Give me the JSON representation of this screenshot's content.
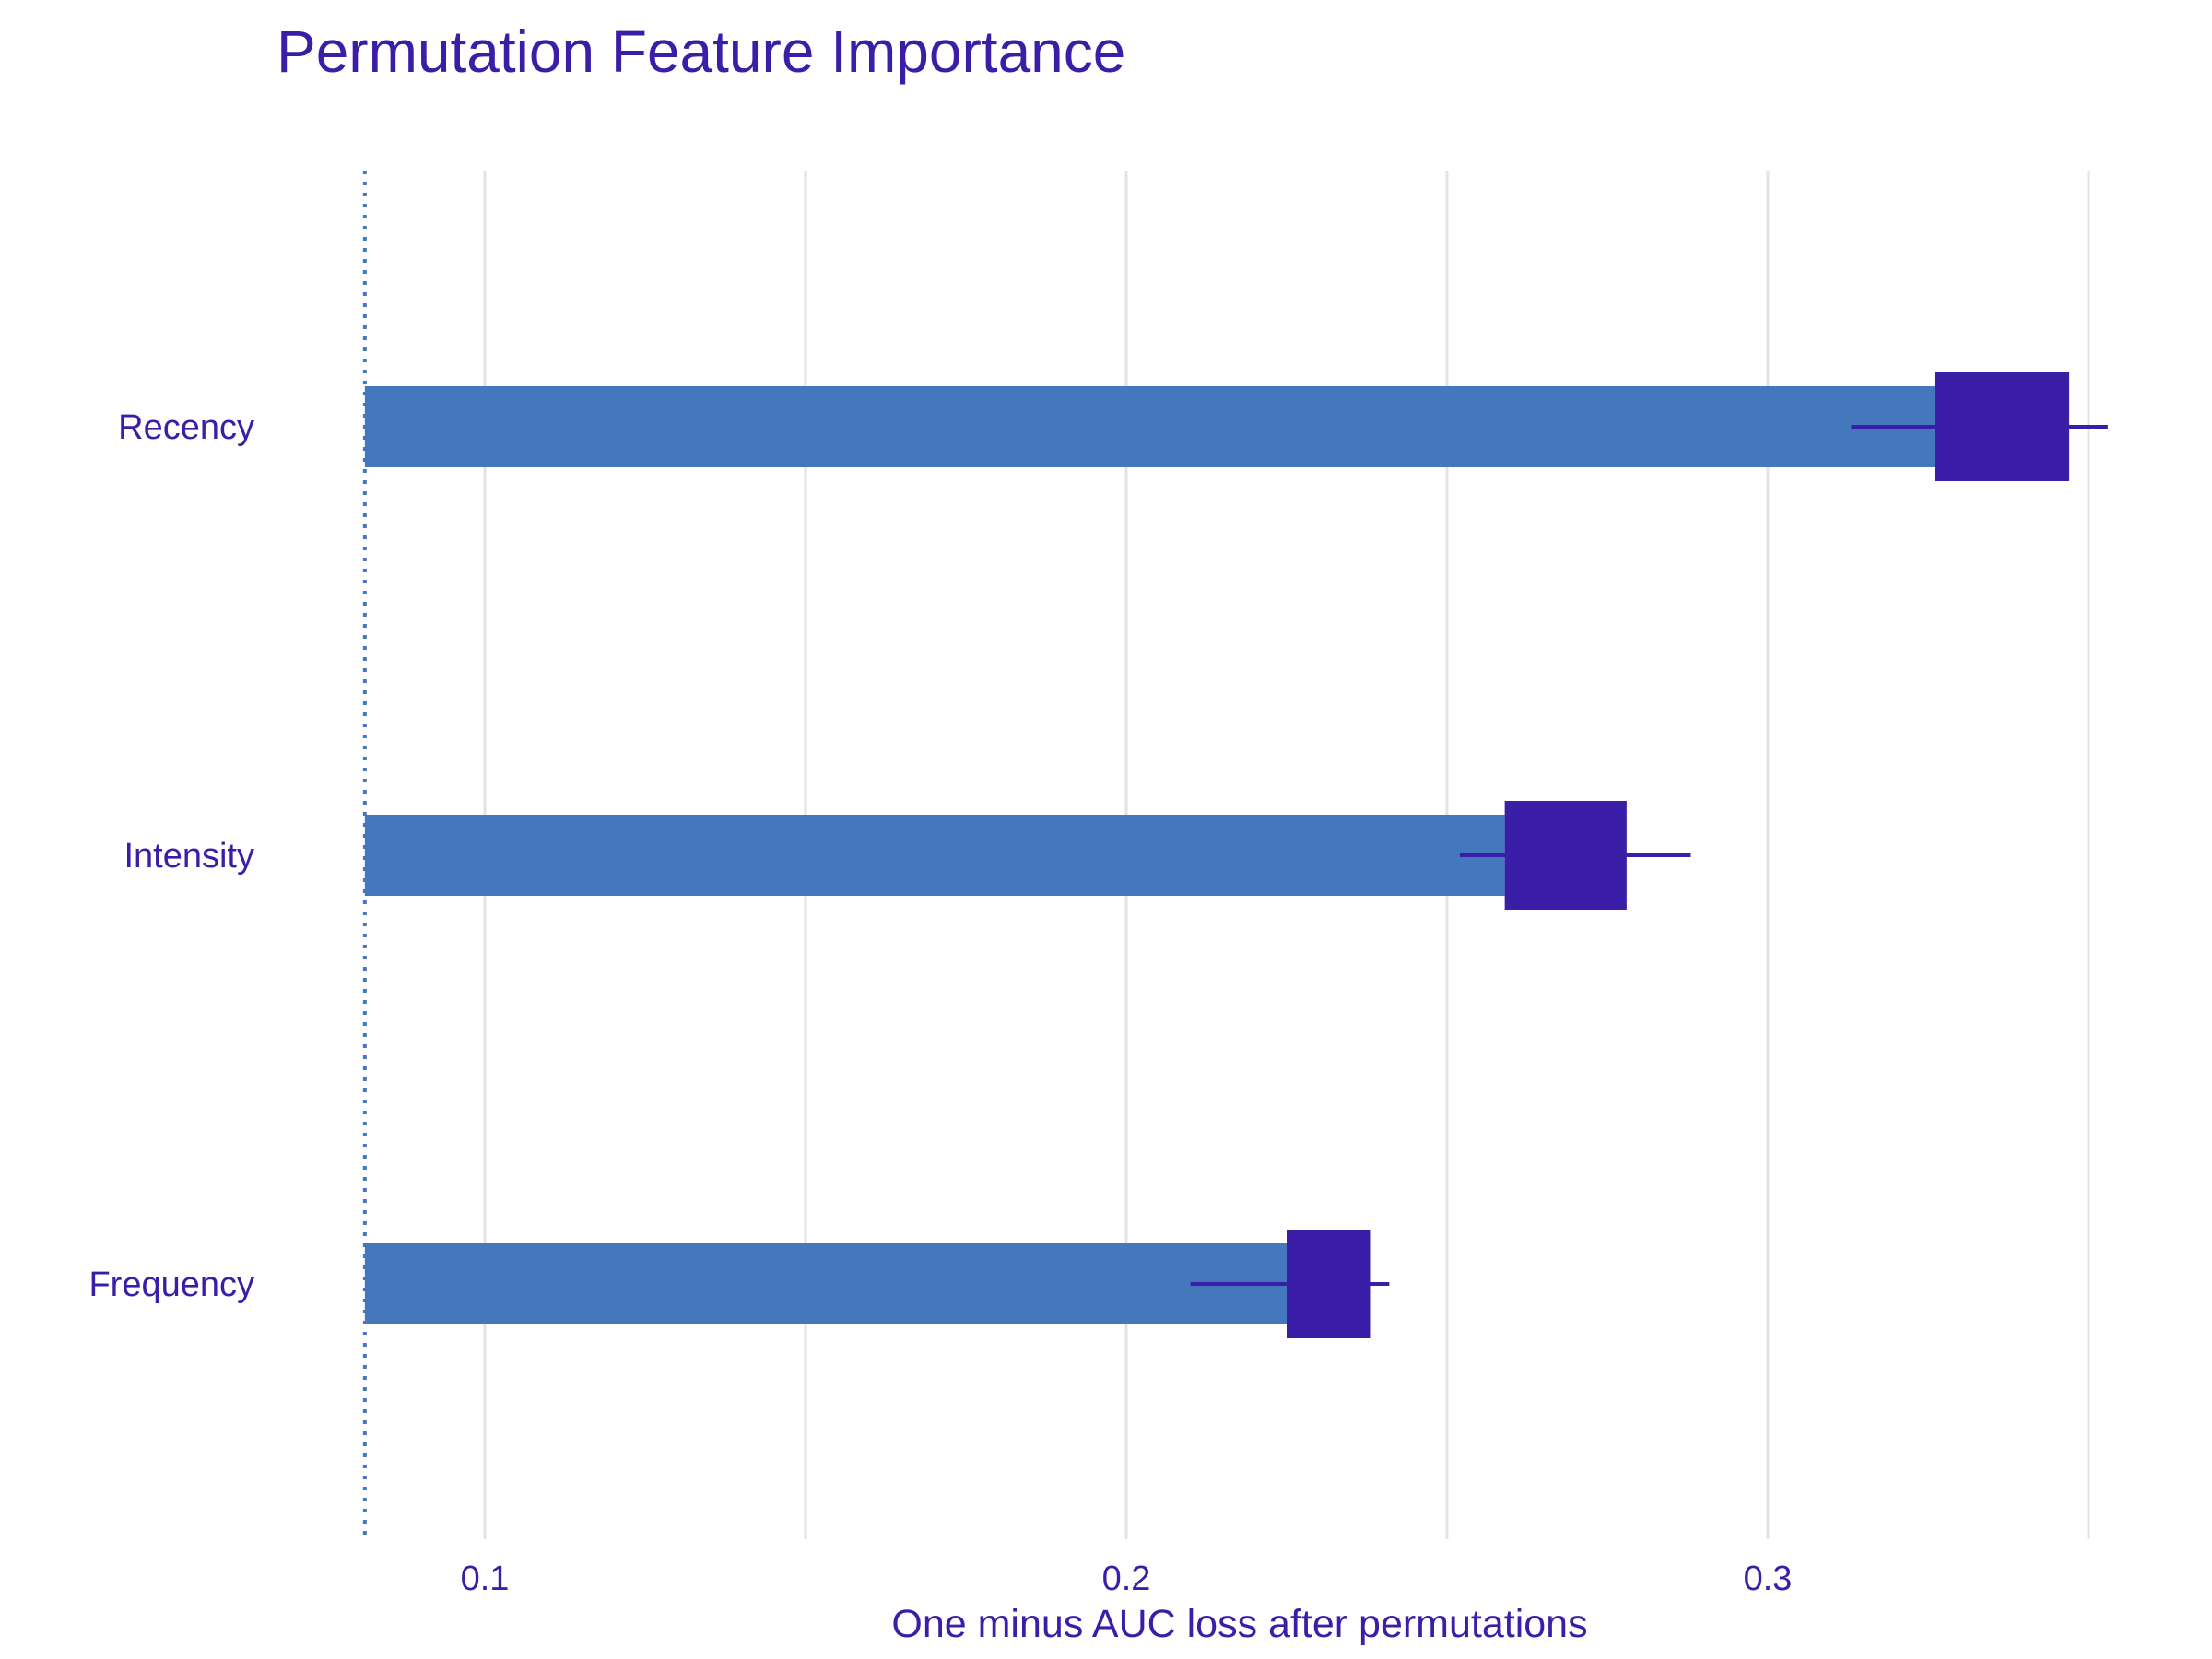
{
  "chart_data": {
    "type": "bar",
    "title": "Permutation Feature Importance",
    "xlabel": "One minus AUC loss after permutations",
    "ylabel": "",
    "baseline": 0.0813,
    "xlim": [
      0.0813,
      0.354
    ],
    "xticks": [
      {
        "value": 0.1,
        "label": "0.1"
      },
      {
        "value": 0.2,
        "label": "0.2"
      },
      {
        "value": 0.3,
        "label": "0.3"
      }
    ],
    "minor_gridlines": [
      0.15,
      0.25,
      0.35
    ],
    "grid": true,
    "legend": "none",
    "categories": [
      "Recency",
      "Intensity",
      "Frequency"
    ],
    "values": [
      0.326,
      0.259,
      0.225
    ],
    "boxes": [
      {
        "category": "Recency",
        "whisker_low": 0.313,
        "q1": 0.326,
        "q3": 0.347,
        "whisker_high": 0.353
      },
      {
        "category": "Intensity",
        "whisker_low": 0.252,
        "q1": 0.259,
        "q3": 0.278,
        "whisker_high": 0.288
      },
      {
        "category": "Frequency",
        "whisker_low": 0.21,
        "q1": 0.225,
        "q3": 0.238,
        "whisker_high": 0.241
      }
    ],
    "colors": {
      "bar": "#4577bd",
      "box": "#3a1ea8",
      "baseline": "#4577bd",
      "text": "#3a1ea8",
      "grid": "#e3e3e3"
    }
  }
}
